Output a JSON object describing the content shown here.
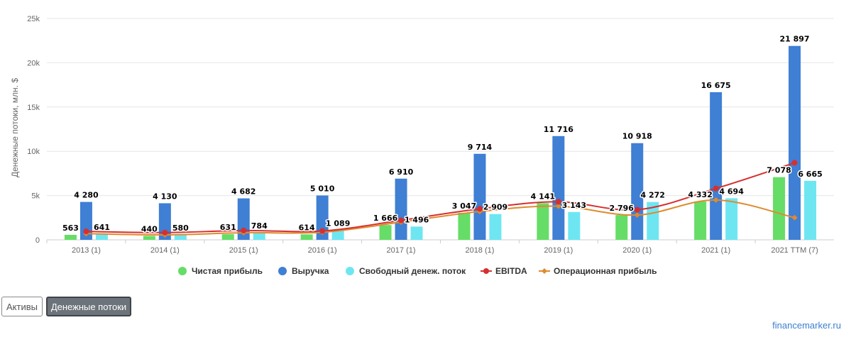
{
  "chart_data": {
    "type": "bar",
    "ylabel": "Денежные потоки, млн. $",
    "ylim": [
      0,
      25000
    ],
    "yticks": [
      0,
      5000,
      10000,
      15000,
      20000,
      25000
    ],
    "ytick_labels": [
      "0",
      "5k",
      "10k",
      "15k",
      "20k",
      "25k"
    ],
    "grid": true,
    "legend_position": "bottom-center",
    "categories": [
      "2013 (1)",
      "2014 (1)",
      "2015 (1)",
      "2016 (1)",
      "2017 (1)",
      "2018 (1)",
      "2019 (1)",
      "2020 (1)",
      "2021 (1)",
      "2021 TTM (7)"
    ],
    "series": [
      {
        "name": "Чистая прибыль",
        "kind": "bar",
        "color": "#66dd66",
        "values": [
          563,
          440,
          631,
          614,
          1666,
          3047,
          4141,
          2796,
          4332,
          7078
        ],
        "labels": [
          "563",
          "440",
          "631",
          "614",
          "1 666",
          "3 047",
          "4 141",
          "2 796",
          "4 332",
          "7 078"
        ]
      },
      {
        "name": "Выручка",
        "kind": "bar",
        "color": "#3f7fd4",
        "values": [
          4280,
          4130,
          4682,
          5010,
          6910,
          9714,
          11716,
          10918,
          16675,
          21897
        ],
        "labels": [
          "4 280",
          "4 130",
          "4 682",
          "5 010",
          "6 910",
          "9 714",
          "11 716",
          "10 918",
          "16 675",
          "21 897"
        ]
      },
      {
        "name": "Свободный денеж. поток",
        "kind": "bar",
        "color": "#6ee6f2",
        "values": [
          641,
          580,
          784,
          1089,
          1496,
          2909,
          3143,
          4272,
          4694,
          6665
        ],
        "labels": [
          "641",
          "580",
          "784",
          "1 089",
          "1 496",
          "2 909",
          "3 143",
          "4 272",
          "4 694",
          "6 665"
        ]
      },
      {
        "name": "EBITDA",
        "kind": "line",
        "color": "#d62f2f",
        "values": [
          950,
          820,
          1050,
          1000,
          2200,
          3500,
          4300,
          3400,
          5800,
          8700
        ]
      },
      {
        "name": "Операционная прибыль",
        "kind": "line",
        "color": "#e08a2e",
        "values": [
          700,
          560,
          800,
          850,
          2000,
          3200,
          3800,
          2800,
          4500,
          2500
        ]
      }
    ]
  },
  "buttons": {
    "assets_label": "Активы",
    "cashflow_label": "Денежные потоки"
  },
  "watermark": "financemarker.ru"
}
